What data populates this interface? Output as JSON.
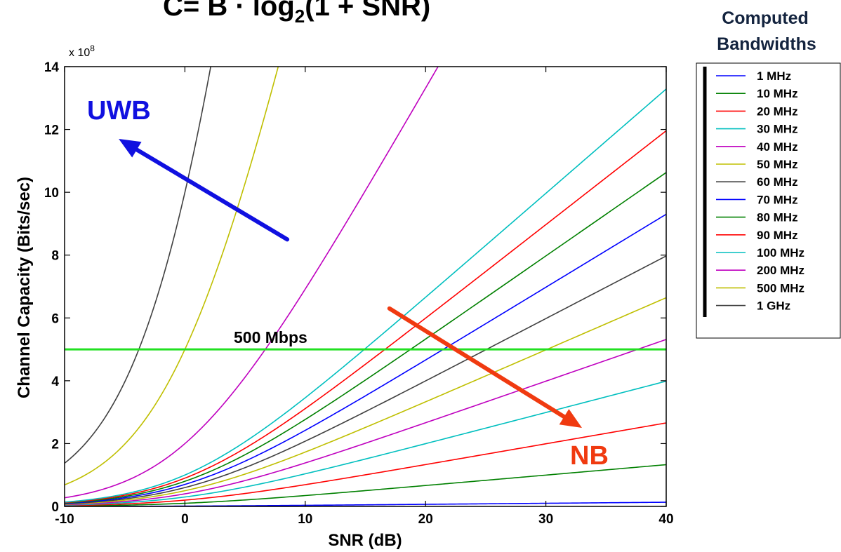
{
  "formula": {
    "prefix": "C= B",
    "middle": " · log",
    "sub": "2",
    "suffix": "(1 + SNR)"
  },
  "legend": {
    "title_line1": "Computed",
    "title_line2": "Bandwidths",
    "placement": "right, outside plot area"
  },
  "chart_data": {
    "type": "line",
    "xlabel": "SNR (dB)",
    "ylabel": "Channel Capacity (Bits/sec)",
    "y_exponent_label": "x 10",
    "y_exponent_power": "8",
    "xlim": [
      -10,
      40
    ],
    "ylim": [
      0,
      14
    ],
    "y_scale_factor": 100000000,
    "x_ticks": [
      -10,
      0,
      10,
      20,
      30,
      40
    ],
    "x_tick_labels": [
      "-10",
      "0",
      "10",
      "20",
      "30",
      "40"
    ],
    "y_ticks": [
      0,
      2,
      4,
      6,
      8,
      10,
      12,
      14
    ],
    "y_tick_labels": [
      "0",
      "2",
      "4",
      "6",
      "8",
      "10",
      "12",
      "14"
    ],
    "grid": false,
    "series": [
      {
        "name": "1 MHz",
        "bandwidth_hz": 1000000,
        "color": "#0000ff"
      },
      {
        "name": "10 MHz",
        "bandwidth_hz": 10000000,
        "color": "#008000"
      },
      {
        "name": "20 MHz",
        "bandwidth_hz": 20000000,
        "color": "#ff0000"
      },
      {
        "name": "30 MHz",
        "bandwidth_hz": 30000000,
        "color": "#00bfbf"
      },
      {
        "name": "40 MHz",
        "bandwidth_hz": 40000000,
        "color": "#bf00bf"
      },
      {
        "name": "50 MHz",
        "bandwidth_hz": 50000000,
        "color": "#bfbf00"
      },
      {
        "name": "60 MHz",
        "bandwidth_hz": 60000000,
        "color": "#404040"
      },
      {
        "name": "70 MHz",
        "bandwidth_hz": 70000000,
        "color": "#0000ff"
      },
      {
        "name": "80 MHz",
        "bandwidth_hz": 80000000,
        "color": "#008000"
      },
      {
        "name": "90 MHz",
        "bandwidth_hz": 90000000,
        "color": "#ff0000"
      },
      {
        "name": "100 MHz",
        "bandwidth_hz": 100000000,
        "color": "#00bfbf"
      },
      {
        "name": "200 MHz",
        "bandwidth_hz": 200000000,
        "color": "#bf00bf"
      },
      {
        "name": "500 MHz",
        "bandwidth_hz": 500000000,
        "color": "#bfbf00"
      },
      {
        "name": "1 GHz",
        "bandwidth_hz": 1000000000,
        "color": "#404040"
      }
    ],
    "reference_line": {
      "label": "500 Mbps",
      "y": 5,
      "color": "#22e022"
    },
    "annotations": [
      {
        "text": "UWB",
        "color": "#1010e0"
      },
      {
        "text": "NB",
        "color": "#f03a10"
      }
    ],
    "arrows": [
      {
        "from": [
          8.5,
          8.5
        ],
        "to": [
          -5.5,
          11.7
        ],
        "color": "#1010e0"
      },
      {
        "from": [
          17,
          6.3
        ],
        "to": [
          33,
          2.5
        ],
        "color": "#f03a10"
      }
    ]
  }
}
